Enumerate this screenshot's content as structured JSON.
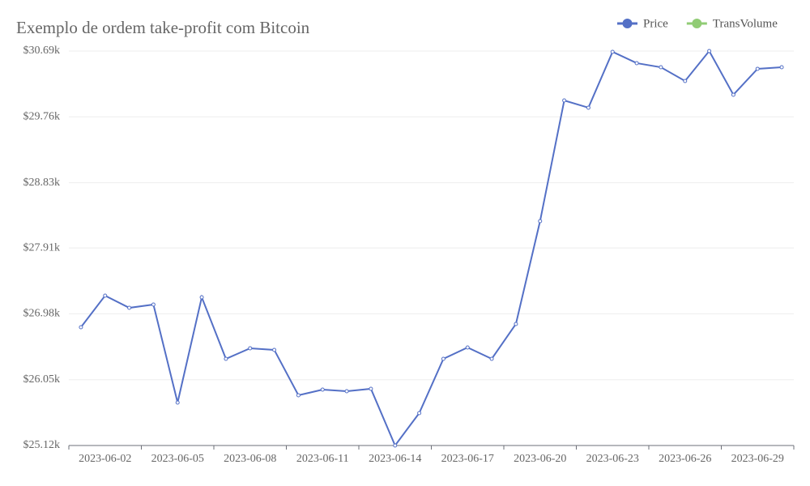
{
  "chart_data": {
    "type": "line",
    "title": "Exemplo de ordem take-profit com Bitcoin",
    "categories": [
      null,
      "2023-06-02",
      null,
      null,
      "2023-06-05",
      null,
      null,
      "2023-06-08",
      null,
      null,
      "2023-06-11",
      null,
      null,
      "2023-06-14",
      null,
      null,
      "2023-06-17",
      null,
      null,
      "2023-06-20",
      null,
      null,
      "2023-06-23",
      null,
      null,
      "2023-06-26",
      null,
      null,
      "2023-06-29",
      null
    ],
    "series": [
      {
        "name": "Price",
        "color": "#5470c6",
        "values": [
          26790,
          27236,
          27064,
          27110,
          25726,
          27213,
          26344,
          26493,
          26470,
          25829,
          25909,
          25886,
          25921,
          25120,
          25578,
          26344,
          26504,
          26344,
          26836,
          28288,
          29992,
          29890,
          30679,
          30519,
          30461,
          30267,
          30690,
          30073,
          30439,
          30461
        ]
      },
      {
        "name": "TransVolume",
        "color": "#91cc75",
        "values": [
          null,
          null,
          null,
          null,
          null,
          null,
          null,
          null,
          null,
          null,
          null,
          null,
          null,
          null,
          null,
          null,
          null,
          null,
          null,
          null,
          null,
          null,
          null,
          null,
          null,
          null,
          null,
          null,
          null,
          null
        ]
      }
    ],
    "ylim": [
      25120,
      30690
    ],
    "yticks": [
      {
        "value": 25120,
        "label": "$25.12k"
      },
      {
        "value": 26050,
        "label": "$26.05k"
      },
      {
        "value": 26980,
        "label": "$26.98k"
      },
      {
        "value": 27910,
        "label": "$27.91k"
      },
      {
        "value": 28830,
        "label": "$28.83k"
      },
      {
        "value": 29760,
        "label": "$29.76k"
      },
      {
        "value": 30690,
        "label": "$30.69k"
      }
    ],
    "grid": true
  }
}
